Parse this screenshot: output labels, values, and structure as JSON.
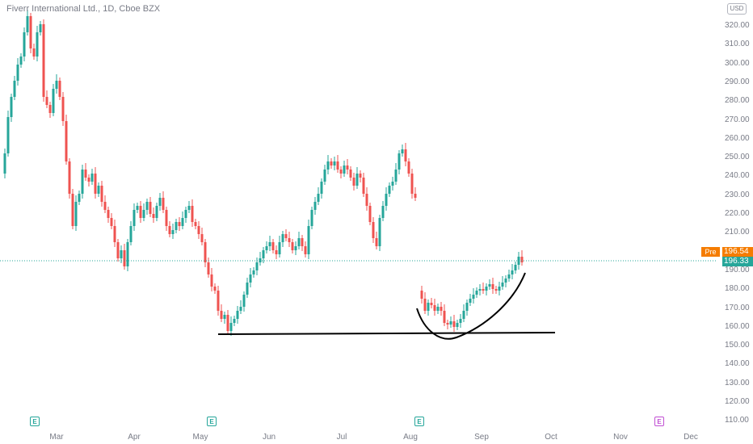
{
  "header": {
    "title": "Fiverr International Ltd., 1D, Cboe BZX",
    "currency": "USD"
  },
  "price_axis": {
    "ticks": [
      "320.00",
      "310.00",
      "300.00",
      "290.00",
      "280.00",
      "270.00",
      "260.00",
      "250.00",
      "240.00",
      "230.00",
      "220.00",
      "210.00",
      "200.00",
      "190.00",
      "180.00",
      "170.00",
      "160.00",
      "150.00",
      "140.00",
      "130.00",
      "120.00",
      "110.00"
    ]
  },
  "time_axis": {
    "labels": [
      "Mar",
      "Apr",
      "May",
      "Jun",
      "Jul",
      "Aug",
      "Sep",
      "Oct",
      "Nov",
      "Dec"
    ]
  },
  "price_badges": {
    "premarket_label": "Pre",
    "premarket_price": "196.54",
    "last_price": "196.33",
    "premarket_color": "#f57c00",
    "last_color": "#26a69a"
  },
  "earnings_markers": {
    "label": "E",
    "past_color": "#26a69a",
    "upcoming_color": "#c04fd3"
  },
  "chart_data": {
    "type": "candlestick",
    "title": "Fiverr International Ltd., 1D, Cboe BZX",
    "currency": "USD",
    "ylim": [
      105,
      330
    ],
    "up_color": "#26a69a",
    "down_color": "#ef5350",
    "drawn_annotations": [
      "horizontal support line near 158",
      "rounded bottom arc from early August to mid-September"
    ],
    "last_price_line": 196.33
  }
}
